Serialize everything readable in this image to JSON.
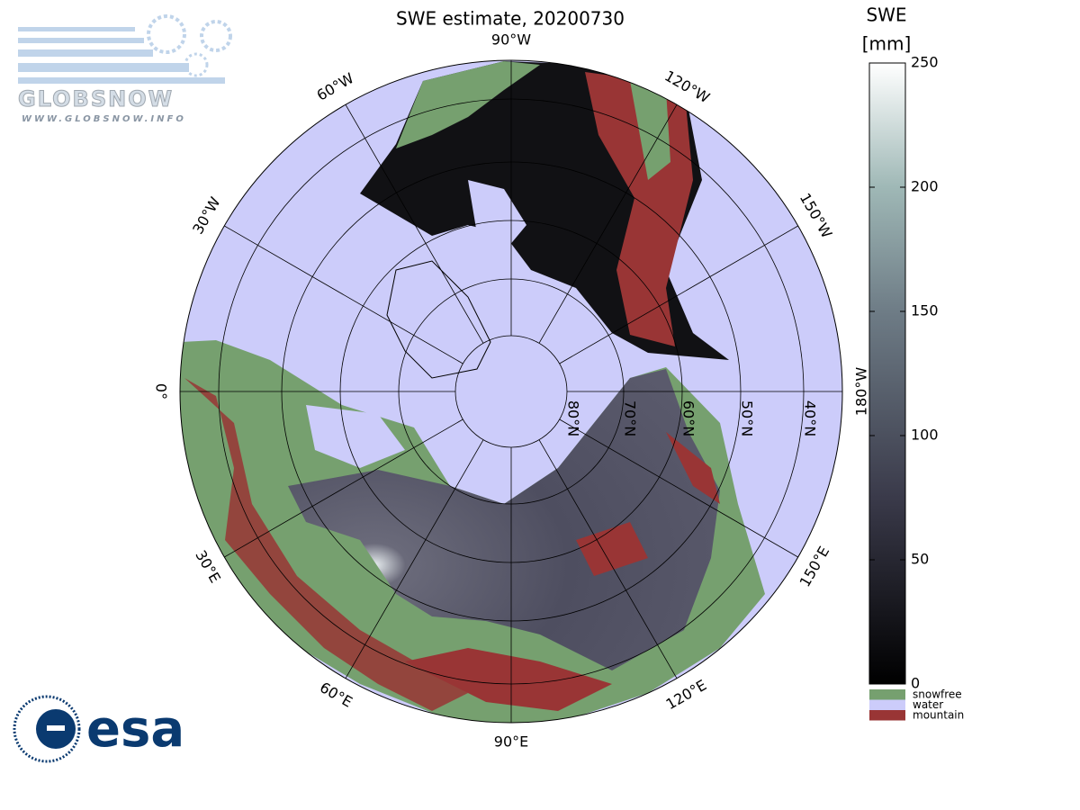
{
  "header": {
    "title": "SWE estimate, 20200730"
  },
  "logos": {
    "globsnow": "GLOBSNOW",
    "globsnow_url": "WWW.GLOBSNOW.INFO",
    "esa": "esa"
  },
  "map": {
    "longitude_labels": [
      "0°",
      "30°E",
      "60°E",
      "90°E",
      "120°E",
      "150°E",
      "180°W",
      "150°W",
      "120°W",
      "90°W",
      "60°W",
      "30°W"
    ],
    "latitude_labels": [
      "80°N",
      "70°N",
      "60°N",
      "50°N",
      "40°N"
    ]
  },
  "colorbar": {
    "label": "SWE",
    "unit": "[mm]",
    "lim": [
      0,
      250
    ],
    "ticks": [
      0,
      50,
      100,
      150,
      200,
      250
    ]
  },
  "legend": [
    {
      "label": "snowfree",
      "color": "#76a06f"
    },
    {
      "label": "water",
      "color": "#ccccfa"
    },
    {
      "label": "mountain",
      "color": "#993535"
    }
  ]
}
